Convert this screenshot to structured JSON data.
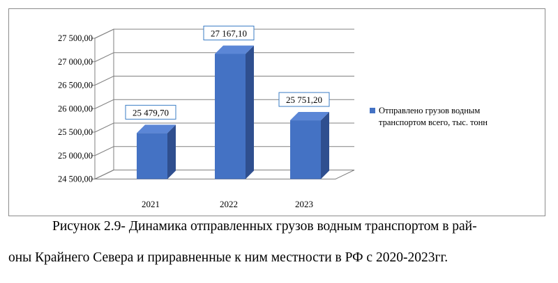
{
  "chart_data": {
    "type": "bar",
    "categories": [
      "2021",
      "2022",
      "2023"
    ],
    "series": [
      {
        "name": "Отправлено грузов водным транспортом всего, тыс. тонн",
        "values": [
          25479.7,
          27167.1,
          25751.2
        ],
        "color": "#4472C4"
      }
    ],
    "data_labels": [
      "25 479,70",
      "27 167,10",
      "25 751,20"
    ],
    "ylim": [
      24500,
      27500
    ],
    "ytick_values": [
      24500,
      25000,
      25500,
      26000,
      26500,
      27000,
      27500
    ],
    "ytick_labels": [
      "24 500,00",
      "25 000,00",
      "25 500,00",
      "26 000,00",
      "26 500,00",
      "27 000,00",
      "27 500,00"
    ],
    "legend_labels": [
      "Отправлено грузов водным",
      "транспортом всего, тыс. тонн"
    ],
    "legend_position": "right",
    "grid": true,
    "style": "3d"
  },
  "caption": {
    "line1": "Рисунок 2.9- Динамика отправленных грузов водным транспортом в рай-",
    "line2": "оны Крайнего Севера и приравненные к ним местности в РФ с 2020-2023гг."
  }
}
